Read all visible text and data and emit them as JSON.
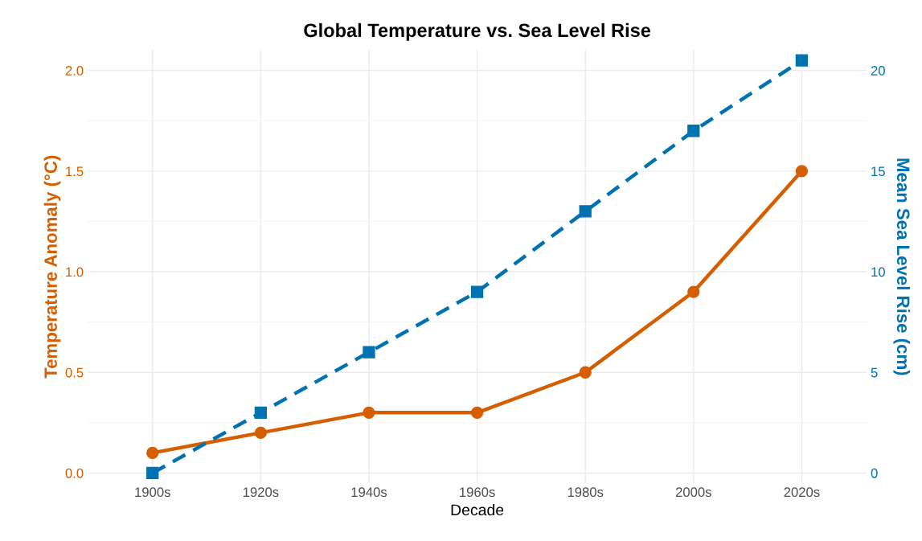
{
  "chart_data": {
    "type": "line",
    "title": "Global Temperature vs. Sea Level Rise",
    "xlabel": "Decade",
    "ylabel": "Temperature Anomaly (°C)",
    "y2label": "Mean Sea Level Rise (cm)",
    "categories": [
      "1900s",
      "1920s",
      "1940s",
      "1960s",
      "1980s",
      "2000s",
      "2020s"
    ],
    "series": [
      {
        "color": "#d55e00",
        "values": [
          0.1,
          0.2,
          0.3,
          0.3,
          0.5,
          0.9,
          1.5
        ],
        "marker": "circle",
        "line_style": "solid"
      },
      {
        "color": "#0072b2",
        "values": [
          0,
          3,
          6,
          9,
          13,
          17,
          20.5
        ],
        "axis": "y2",
        "marker": "square",
        "line_style": "dashed"
      }
    ],
    "ylim": [
      -0.05,
      2.1
    ],
    "yticks": [
      {
        "value": 0,
        "label": "0.0"
      },
      0.5,
      {
        "value": 1,
        "label": "1.0"
      },
      1.5,
      {
        "value": 2,
        "label": "2.0"
      }
    ],
    "y2lim": [
      -0.5,
      21
    ],
    "y2ticks": [
      0,
      5,
      10,
      15,
      20
    ],
    "grid": true,
    "legend": false
  }
}
